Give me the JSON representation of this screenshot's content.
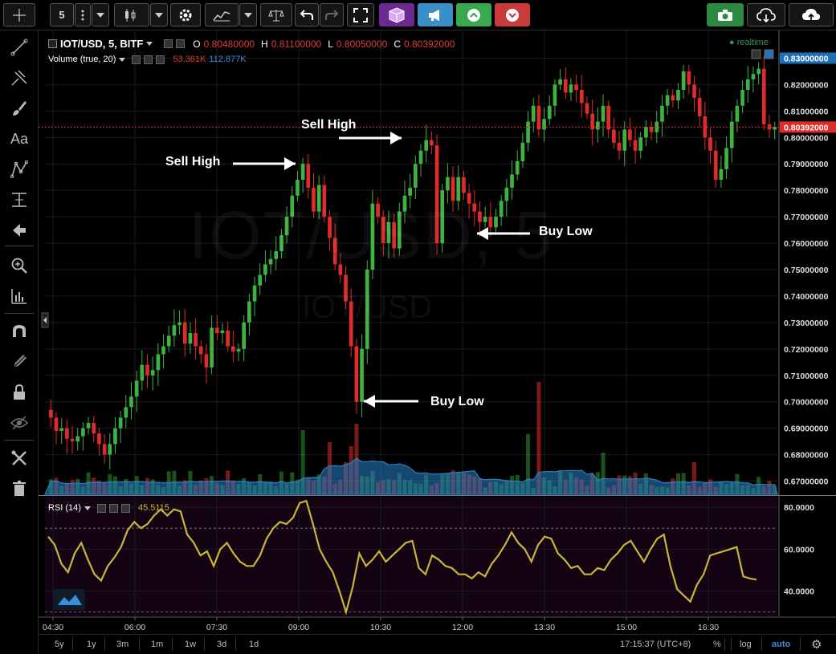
{
  "toolbar": {
    "interval_label": "5",
    "buttons": [
      "interval",
      "more",
      "dropdown",
      "chart-style",
      "dropdown",
      "settings",
      "indicators",
      "dropdown",
      "compare",
      "undo",
      "redo",
      "fullscreen",
      "cube",
      "announce",
      "up",
      "down",
      "snapshot",
      "load-chart",
      "save-chart"
    ]
  },
  "sidebar": {
    "icons": [
      "crosshair-icon",
      "trend-line-icon",
      "pitchfork-icon",
      "brush-icon",
      "text-icon",
      "pattern-icon",
      "measure-icon",
      "arrow-left-icon",
      "zoom-icon",
      "ruler-icon",
      "magnet-icon",
      "pencil-lock-icon",
      "lock-icon",
      "eye-hidden-icon",
      "tools-icon",
      "trash-icon"
    ],
    "text_tool_label": "Aa"
  },
  "legend": {
    "symbol": "IOT/USD, 5, BITF",
    "o_label": "O",
    "o_value": "0.80480000",
    "h_label": "H",
    "h_value": "0.81100000",
    "l_label": "L",
    "l_value": "0.80050000",
    "c_label": "C",
    "c_value": "0.80392000",
    "volume_label": "Volume (true, 20)",
    "volume_value1": "53.361K",
    "volume_value2": "112.877K",
    "rsi_label": "RSI (14)",
    "rsi_value": "45.5115",
    "realtime": "realtime"
  },
  "watermark": {
    "main": "IOT/USD, 5",
    "sub": "IOT/USD"
  },
  "annotations": {
    "sell_high_1": "Sell High",
    "sell_high_2": "Sell High",
    "buy_low_1": "Buy Low",
    "buy_low_2": "Buy Low"
  },
  "price_axis": {
    "ticks": [
      "0.83000000",
      "0.82000000",
      "0.81000000",
      "0.80000000",
      "0.79000000",
      "0.78000000",
      "0.77000000",
      "0.76000000",
      "0.75000000",
      "0.74000000",
      "0.73000000",
      "0.72000000",
      "0.71000000",
      "0.70000000",
      "0.69000000",
      "0.68000000",
      "0.67000000"
    ],
    "current_price": "0.80392000"
  },
  "rsi_axis": {
    "ticks": [
      "80.0000",
      "60.0000",
      "40.0000"
    ]
  },
  "time_axis": {
    "ticks": [
      "04:30",
      "06:00",
      "07:30",
      "09:00",
      "10:30",
      "12:00",
      "13:30",
      "15:00",
      "16:30"
    ]
  },
  "bottom_bar": {
    "ranges": [
      "5y",
      "1y",
      "3m",
      "1m",
      "1w",
      "3d",
      "1d"
    ],
    "clock": "17:15:37 (UTC+8)",
    "percent": "%",
    "log": "log",
    "auto": "auto"
  },
  "colors": {
    "up": "#3fb33f",
    "down": "#e02b2b",
    "rsi": "#c9b53a",
    "volume_ma": "#2a80c0",
    "accent_blue": "#3a8fd8"
  },
  "chart_data": [
    {
      "type": "candlestick",
      "title": "IOT/USD, 5, BITF",
      "ylim": [
        0.665,
        0.835
      ],
      "x_ticks": [
        "04:30",
        "06:00",
        "07:30",
        "09:00",
        "10:30",
        "12:00",
        "13:30",
        "15:00",
        "16:30"
      ],
      "close_series": [
        0.694,
        0.689,
        0.69,
        0.686,
        0.685,
        0.687,
        0.69,
        0.692,
        0.688,
        0.684,
        0.68,
        0.684,
        0.69,
        0.694,
        0.698,
        0.702,
        0.708,
        0.714,
        0.71,
        0.712,
        0.718,
        0.721,
        0.725,
        0.729,
        0.73,
        0.722,
        0.726,
        0.721,
        0.718,
        0.713,
        0.728,
        0.726,
        0.727,
        0.721,
        0.719,
        0.72,
        0.73,
        0.738,
        0.744,
        0.748,
        0.752,
        0.754,
        0.757,
        0.763,
        0.77,
        0.778,
        0.784,
        0.79,
        0.781,
        0.772,
        0.782,
        0.77,
        0.762,
        0.752,
        0.748,
        0.738,
        0.721,
        0.7,
        0.72,
        0.75,
        0.775,
        0.77,
        0.76,
        0.768,
        0.758,
        0.772,
        0.778,
        0.781,
        0.79,
        0.795,
        0.799,
        0.797,
        0.76,
        0.78,
        0.785,
        0.776,
        0.785,
        0.779,
        0.775,
        0.772,
        0.768,
        0.77,
        0.766,
        0.77,
        0.776,
        0.781,
        0.786,
        0.791,
        0.798,
        0.806,
        0.812,
        0.803,
        0.807,
        0.812,
        0.82,
        0.822,
        0.817,
        0.82,
        0.818,
        0.813,
        0.809,
        0.803,
        0.806,
        0.812,
        0.803,
        0.798,
        0.795,
        0.803,
        0.799,
        0.795,
        0.8,
        0.804,
        0.802,
        0.806,
        0.812,
        0.816,
        0.814,
        0.818,
        0.825,
        0.82,
        0.815,
        0.808,
        0.8,
        0.795,
        0.784,
        0.788,
        0.796,
        0.806,
        0.812,
        0.818,
        0.822,
        0.824,
        0.826,
        0.805,
        0.803,
        0.804
      ],
      "annotations": [
        "Sell High",
        "Sell High",
        "Buy Low",
        "Buy Low"
      ]
    },
    {
      "type": "bar",
      "title": "Volume (true, 20)",
      "values_k": [
        53.361,
        112.877
      ]
    },
    {
      "type": "line",
      "title": "RSI (14)",
      "ylim": [
        28,
        85
      ],
      "guide_lines": [
        70,
        30
      ],
      "values": [
        66,
        62,
        53,
        49,
        58,
        63,
        55,
        48,
        45,
        52,
        56,
        61,
        69,
        73,
        70,
        72,
        76,
        79,
        76,
        79,
        78,
        67,
        63,
        57,
        59,
        52,
        60,
        63,
        58,
        54,
        52,
        52,
        57,
        65,
        70,
        73,
        72,
        75,
        82,
        83,
        72,
        60,
        54,
        49,
        40,
        30,
        42,
        58,
        52,
        55,
        59,
        54,
        57,
        60,
        63,
        64,
        51,
        48,
        57,
        55,
        52,
        51,
        48,
        48,
        46,
        49,
        47,
        53,
        57,
        62,
        68,
        63,
        60,
        54,
        62,
        66,
        65,
        58,
        55,
        51,
        52,
        48,
        48,
        51,
        50,
        55,
        58,
        62,
        64,
        59,
        54,
        60,
        65,
        67,
        52,
        41,
        38,
        35,
        43,
        48,
        57,
        58,
        59,
        60,
        61,
        47,
        46,
        45.5
      ]
    }
  ]
}
